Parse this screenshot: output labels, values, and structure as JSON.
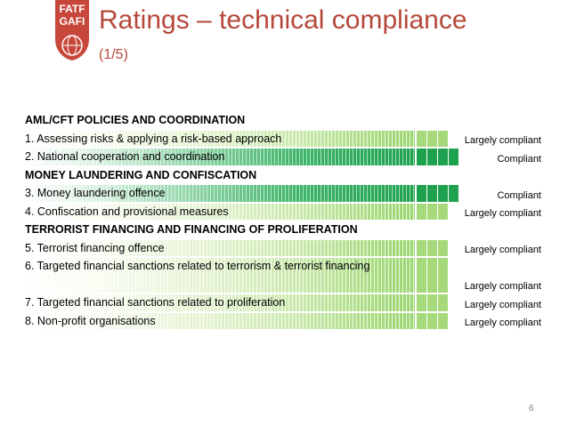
{
  "header": {
    "logo_text": [
      "FATF",
      "GAFI"
    ],
    "title": "Ratings – technical compliance",
    "subtitle": "(1/5)"
  },
  "colors": {
    "title": "#b5483a",
    "logo": "#c8473b",
    "largely_compliant": "#9bd671",
    "compliant": "#1ea24f"
  },
  "table": {
    "rows": [
      {
        "type": "section",
        "label": "AML/CFT POLICIES AND COORDINATION"
      },
      {
        "type": "item",
        "label": "1. Assessing risks & applying a risk-based approach",
        "rating": "Largely compliant"
      },
      {
        "type": "item",
        "label": "2. National cooperation and coordination",
        "rating": "Compliant"
      },
      {
        "type": "section",
        "label": "MONEY LAUNDERING AND CONFISCATION"
      },
      {
        "type": "item",
        "label": "3. Money laundering offence",
        "rating": "Compliant"
      },
      {
        "type": "item",
        "label": "4. Confiscation and provisional measures",
        "rating": "Largely compliant"
      },
      {
        "type": "section",
        "label": "TERRORIST FINANCING AND FINANCING OF PROLIFERATION"
      },
      {
        "type": "item",
        "label": "5. Terrorist financing offence",
        "rating": "Largely compliant"
      },
      {
        "type": "item",
        "label": "6. Targeted financial sanctions related to terrorism & terrorist financing",
        "rating": "Largely compliant"
      },
      {
        "type": "item",
        "label": "7. Targeted financial sanctions related to proliferation",
        "rating": "Largely compliant"
      },
      {
        "type": "item",
        "label": "8. Non-profit organisations",
        "rating": "Largely compliant"
      }
    ]
  },
  "footer": {
    "page_number": "6"
  }
}
